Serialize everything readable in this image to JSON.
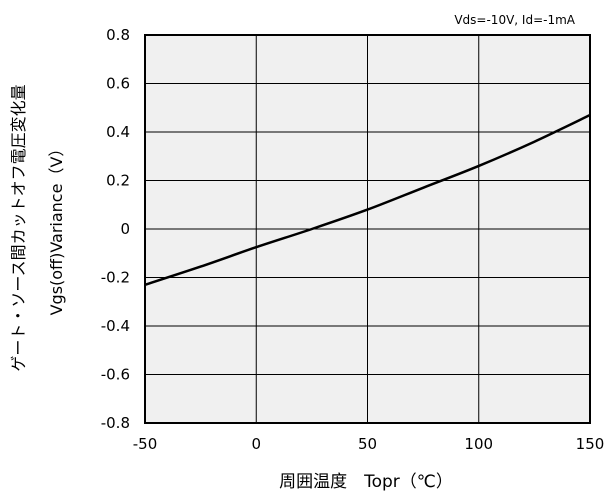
{
  "chart_data": {
    "type": "line",
    "title": "",
    "condition": "Vds=-10V,  Id=-1mA",
    "xlabel": "周囲温度　Topr（℃）",
    "ylabel_jp": "ゲート・ソース間カットオフ電圧変化量",
    "ylabel_en": "Vgs(off)Variance（V）",
    "xlim": [
      -50,
      150
    ],
    "ylim": [
      -0.8,
      0.8
    ],
    "xticks": [
      -50,
      0,
      50,
      100,
      150
    ],
    "xtick_labels": [
      "-50",
      "0",
      "50",
      "100",
      "150"
    ],
    "yticks": [
      0.8,
      0.6,
      0.4,
      0.2,
      0,
      -0.2,
      -0.4,
      -0.6,
      -0.8
    ],
    "ytick_labels": [
      "0.8",
      "0.6",
      "0.4",
      "0.2",
      "0",
      "-0.2",
      "-0.4",
      "-0.6",
      "-0.8"
    ],
    "grid": true,
    "background": "#f0f0f0",
    "line_color": "#000000",
    "series": [
      {
        "x": [
          -50,
          -25,
          0,
          25,
          50,
          75,
          100,
          125,
          150
        ],
        "values": [
          -0.23,
          -0.155,
          -0.075,
          0.0,
          0.08,
          0.17,
          0.26,
          0.36,
          0.47
        ]
      }
    ]
  }
}
